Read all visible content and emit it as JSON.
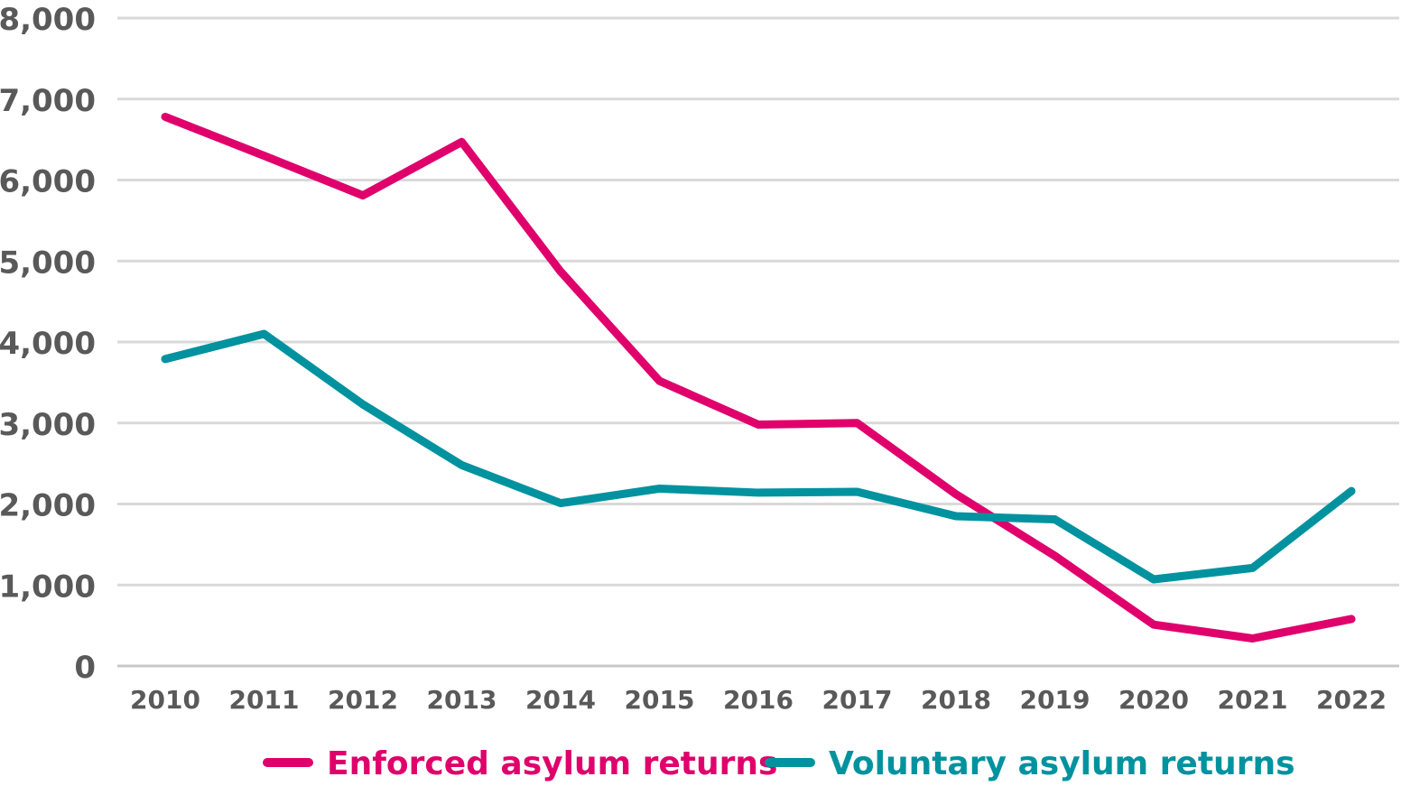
{
  "chart_data": {
    "type": "line",
    "title": "",
    "xlabel": "",
    "ylabel": "",
    "ylim": [
      0,
      8000
    ],
    "yticks": [
      0,
      1000,
      2000,
      3000,
      4000,
      5000,
      6000,
      7000,
      8000
    ],
    "ytick_labels": [
      "0",
      "1,000",
      "2,000",
      "3,000",
      "4,000",
      "5,000",
      "6,000",
      "7,000",
      "8,000"
    ],
    "categories": [
      "2010",
      "2011",
      "2012",
      "2013",
      "2014",
      "2015",
      "2016",
      "2017",
      "2018",
      "2019",
      "2020",
      "2021",
      "2022"
    ],
    "grid": true,
    "legend_position": "bottom",
    "series": [
      {
        "name": "Enforced asylum returns",
        "color": "#e0006c",
        "values": [
          6780,
          6300,
          5810,
          6470,
          4870,
          3520,
          2980,
          3000,
          2120,
          1360,
          510,
          340,
          580
        ]
      },
      {
        "name": "Voluntary asylum returns",
        "color": "#00929f",
        "values": [
          3790,
          4100,
          3230,
          2480,
          2010,
          2190,
          2140,
          2150,
          1850,
          1810,
          1070,
          1210,
          2160
        ]
      }
    ]
  }
}
